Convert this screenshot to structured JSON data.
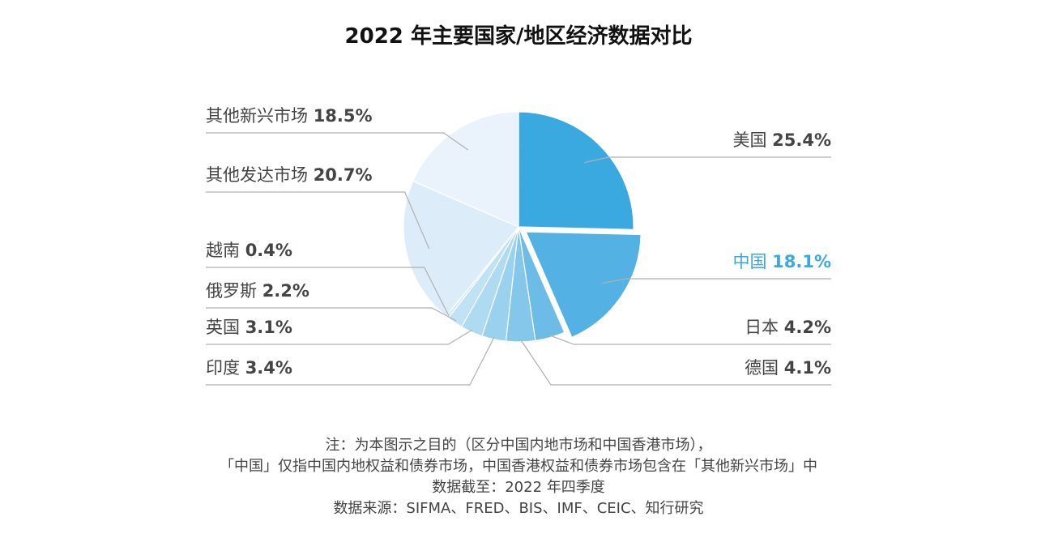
{
  "chart_data": {
    "type": "pie",
    "title": "2022 年主要国家/地区经济数据对比",
    "unit": "%",
    "slices": [
      {
        "label": "美国",
        "value": 25.4,
        "value_text": "25.4%",
        "color": "#3aa9e0",
        "side": "right"
      },
      {
        "label": "中国",
        "value": 18.1,
        "value_text": "18.1%",
        "color": "#54b1e3",
        "side": "right",
        "highlight": true,
        "exploded": true
      },
      {
        "label": "日本",
        "value": 4.2,
        "value_text": "4.2%",
        "color": "#6cbce7",
        "side": "right"
      },
      {
        "label": "德国",
        "value": 4.1,
        "value_text": "4.1%",
        "color": "#84c7eb",
        "side": "right"
      },
      {
        "label": "印度",
        "value": 3.4,
        "value_text": "3.4%",
        "color": "#9ad1ef",
        "side": "left"
      },
      {
        "label": "英国",
        "value": 3.1,
        "value_text": "3.1%",
        "color": "#aedaf2",
        "side": "left"
      },
      {
        "label": "俄罗斯",
        "value": 2.2,
        "value_text": "2.2%",
        "color": "#bfe2f5",
        "side": "left"
      },
      {
        "label": "越南",
        "value": 0.4,
        "value_text": "0.4%",
        "color": "#cfe9f7",
        "side": "left"
      },
      {
        "label": "其他发达市场",
        "value": 20.7,
        "value_text": "20.7%",
        "color": "#dcecf8",
        "side": "left"
      },
      {
        "label": "其他新兴市场",
        "value": 18.5,
        "value_text": "18.5%",
        "color": "#eaf3fb",
        "side": "left"
      }
    ],
    "start_angle_deg": 0,
    "direction": "clockwise",
    "legend": "none",
    "highlight_color": "#3aa9e0",
    "label_color": "#444444",
    "leader_color": "#b0b0b0"
  },
  "notes": [
    "注：为本图示之目的（区分中国内地市场和中国香港市场），",
    "「中国」仅指中国内地权益和债券市场，中国香港权益和债券市场包含在「其他新兴市场」中",
    "数据截至：2022 年四季度",
    "数据来源：SIFMA、FRED、BIS、IMF、CEIC、知行研究"
  ]
}
